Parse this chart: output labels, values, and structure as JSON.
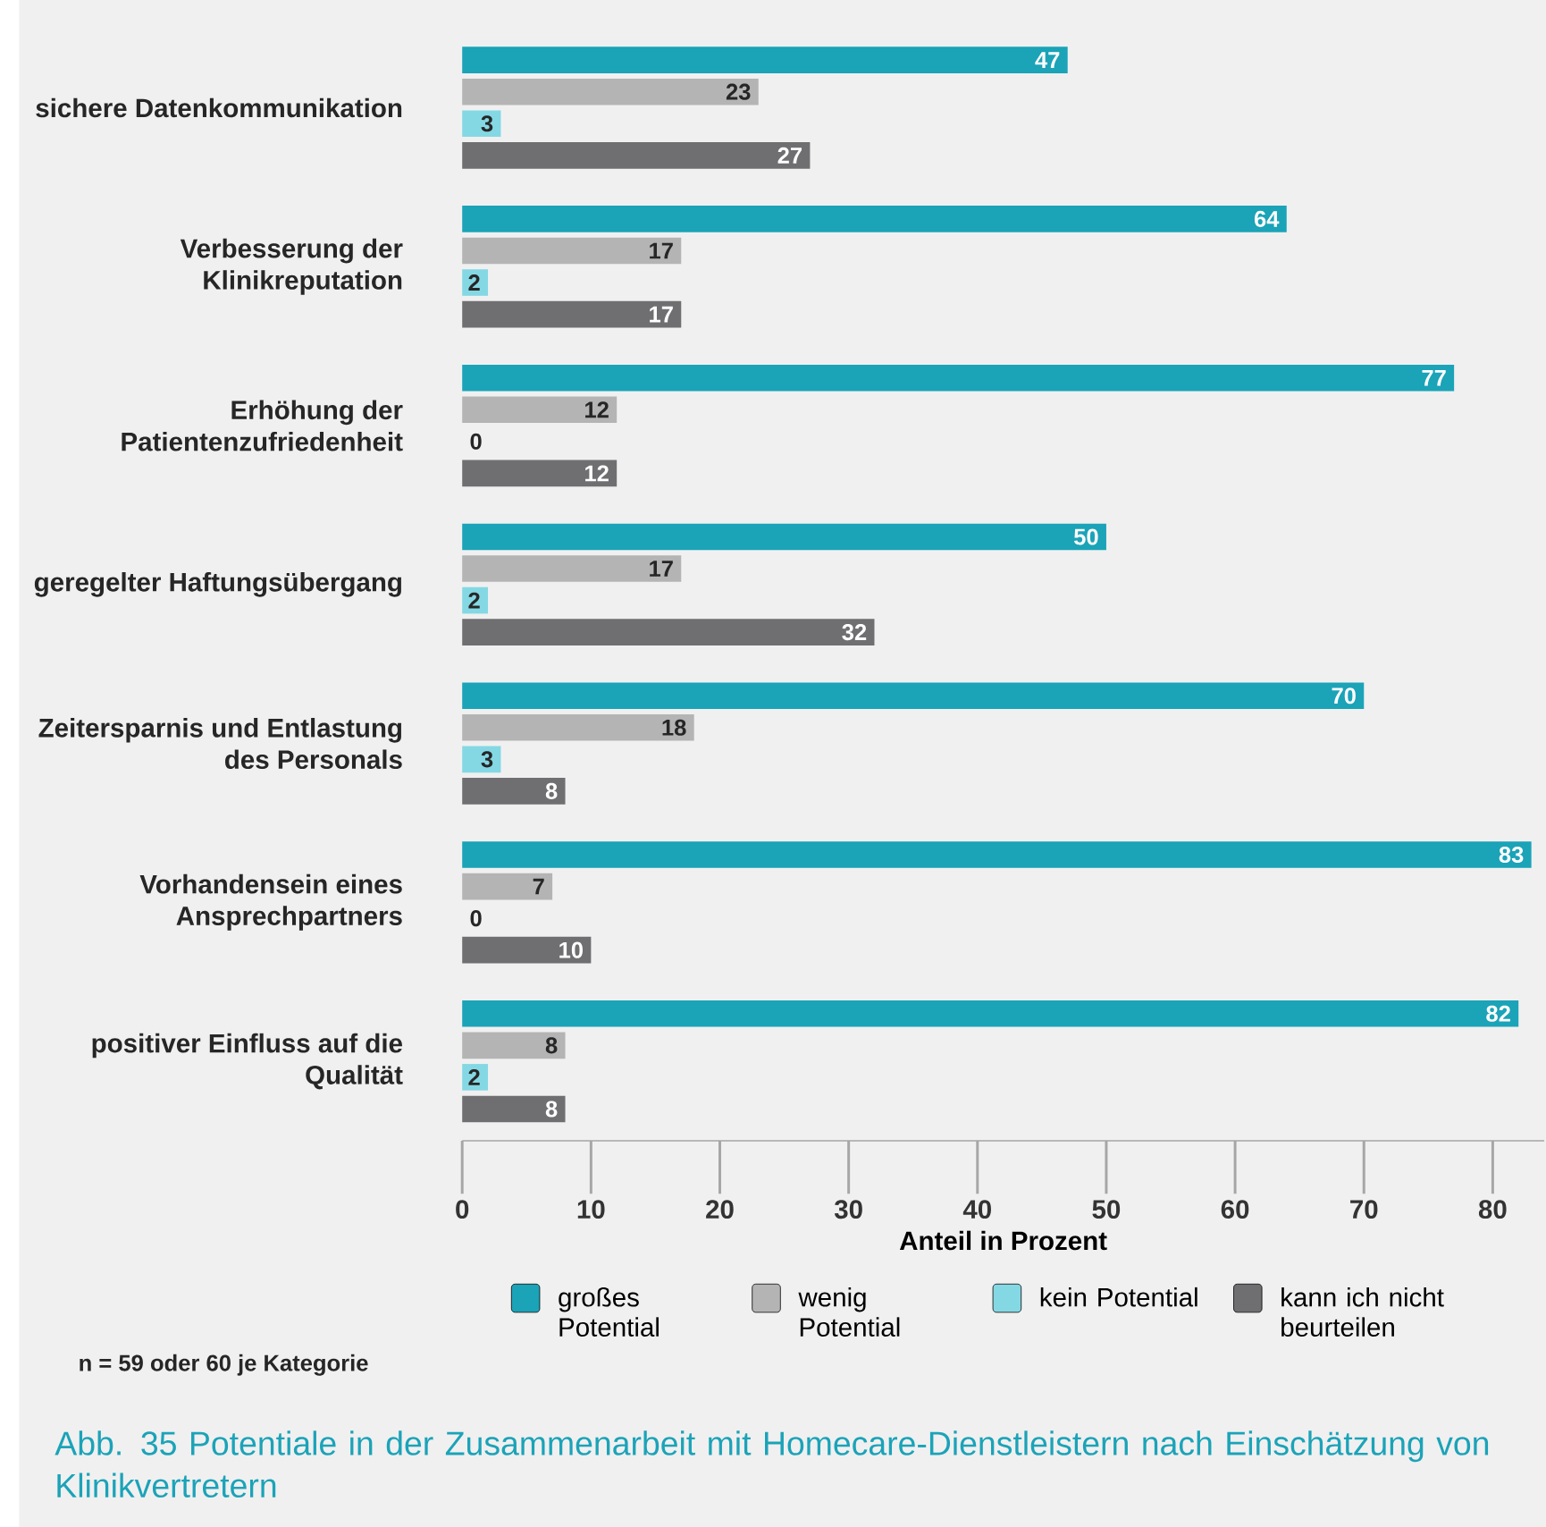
{
  "chart_data": {
    "type": "bar",
    "orientation": "horizontal",
    "title": "Abb. 35  Potentiale in der Zusammenarbeit mit Homecare-Dienstleistern nach Einschätzung von Klinikvertretern",
    "xlabel": "Anteil in Prozent",
    "annotations": [
      "n = 59 oder 60 je Kategorie"
    ],
    "categories": [
      "sichere Datenkommunikation",
      "Verbesserung der Klinikreputation",
      "Erhöhung der Patientenzufriedenheit",
      "geregelter Haftungsübergang",
      "Zeitersparnis und Entlastung des Personals",
      "Vorhandensein eines Ansprechpartners",
      "positiver Einfluss auf die Qualität"
    ],
    "series": [
      {
        "name": "großes Potential",
        "color": "#1ba3b8",
        "values": [
          47,
          64,
          77,
          50,
          70,
          83,
          82
        ]
      },
      {
        "name": "wenig Potential",
        "color": "#b4b4b4",
        "values": [
          23,
          17,
          12,
          17,
          18,
          7,
          8
        ]
      },
      {
        "name": "kein Potential",
        "color": "#84d8e4",
        "values": [
          3,
          2,
          0,
          2,
          3,
          0,
          2
        ]
      },
      {
        "name": "kann ich nicht beurteilen",
        "color": "#6f6f72",
        "values": [
          27,
          17,
          12,
          32,
          8,
          10,
          8
        ]
      }
    ],
    "xlim": [
      0,
      84
    ],
    "xticks": [
      0,
      10,
      20,
      30,
      40,
      50,
      60,
      70,
      80
    ],
    "legend": "bottom",
    "data_labels": true
  }
}
